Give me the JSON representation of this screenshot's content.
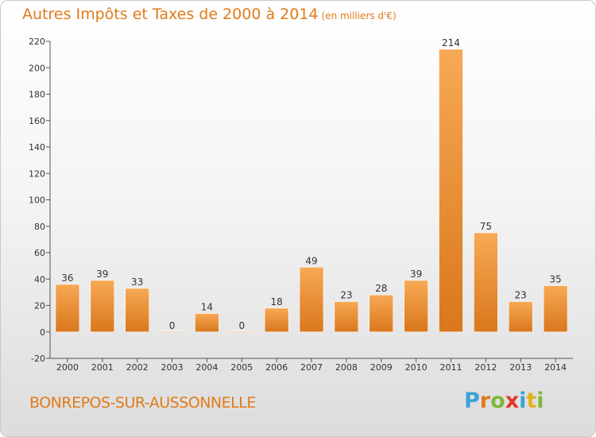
{
  "header": {
    "title": "Autres Impôts et Taxes de 2000 à 2014",
    "unit_note": "(en milliers d'€)"
  },
  "footer": {
    "commune": "BONREPOS-SUR-AUSSONNELLE",
    "logo_letters": [
      {
        "char": "P",
        "color": "#3aa3d8"
      },
      {
        "char": "r",
        "color": "#e07b1a"
      },
      {
        "char": "o",
        "color": "#7fb83a"
      },
      {
        "char": "x",
        "color": "#e03a2a"
      },
      {
        "char": "i",
        "color": "#3aa3d8"
      },
      {
        "char": "t",
        "color": "#e0b21a"
      },
      {
        "char": "i",
        "color": "#7fb83a"
      }
    ]
  },
  "chart_data": {
    "type": "bar",
    "categories": [
      "2000",
      "2001",
      "2002",
      "2003",
      "2004",
      "2005",
      "2006",
      "2007",
      "2008",
      "2009",
      "2010",
      "2011",
      "2012",
      "2013",
      "2014"
    ],
    "values": [
      36,
      39,
      33,
      0,
      14,
      0,
      18,
      49,
      23,
      28,
      39,
      214,
      75,
      23,
      35
    ],
    "data_labels": [
      "36",
      "39",
      "33",
      "0",
      "14",
      "0",
      "18",
      "49",
      "23",
      "28",
      "39",
      "214",
      "75",
      "23",
      "35"
    ],
    "y_ticks": [
      -20,
      0,
      20,
      40,
      60,
      80,
      100,
      120,
      140,
      160,
      180,
      200,
      220
    ],
    "ylim": [
      -20,
      220
    ],
    "grid": false,
    "bar_color": "#f0922e",
    "label_color": "#333333",
    "axis_color": "#555555"
  }
}
